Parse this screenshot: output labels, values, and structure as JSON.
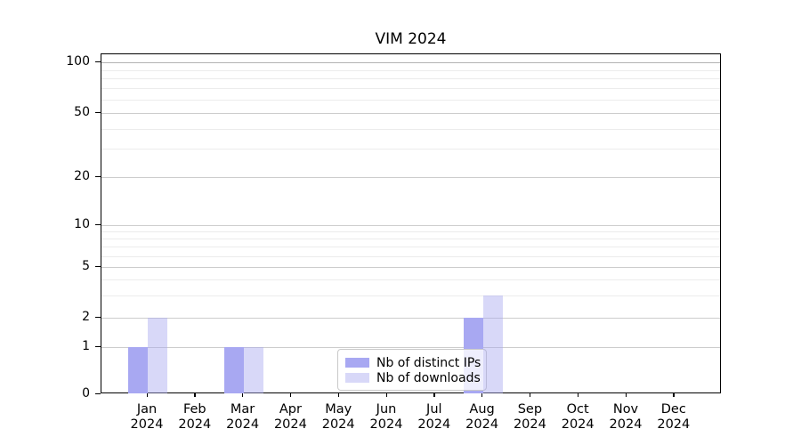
{
  "title": "VIM 2024",
  "chart_data": {
    "type": "bar",
    "title": "VIM 2024",
    "categories": [
      {
        "month": "Jan",
        "year": "2024"
      },
      {
        "month": "Feb",
        "year": "2024"
      },
      {
        "month": "Mar",
        "year": "2024"
      },
      {
        "month": "Apr",
        "year": "2024"
      },
      {
        "month": "May",
        "year": "2024"
      },
      {
        "month": "Jun",
        "year": "2024"
      },
      {
        "month": "Jul",
        "year": "2024"
      },
      {
        "month": "Aug",
        "year": "2024"
      },
      {
        "month": "Sep",
        "year": "2024"
      },
      {
        "month": "Oct",
        "year": "2024"
      },
      {
        "month": "Nov",
        "year": "2024"
      },
      {
        "month": "Dec",
        "year": "2024"
      }
    ],
    "series": [
      {
        "name": "Nb of distinct IPs",
        "values": [
          1,
          0,
          1,
          0,
          0,
          0,
          0,
          2,
          0,
          0,
          0,
          0
        ],
        "color": "#a8a8f2"
      },
      {
        "name": "Nb of downloads",
        "values": [
          2,
          0,
          1,
          0,
          0,
          0,
          0,
          3,
          0,
          0,
          0,
          0
        ],
        "color": "rgba(168,168,240,0.45)"
      }
    ],
    "yscale": "log-like",
    "ytick_values": [
      100,
      50,
      20,
      10,
      5,
      2,
      1,
      0
    ],
    "ytick_labels": [
      "100",
      "50",
      "20",
      "10",
      "5",
      "2",
      "1",
      "0"
    ],
    "minor_grid_values": [
      3,
      4,
      6,
      7,
      8,
      9,
      30,
      40,
      60,
      70,
      80,
      90
    ],
    "xlabel": "",
    "ylabel": "",
    "grid": true,
    "legend_position": "inside lower-center",
    "colors": {
      "major_grid": "#cdcdcd",
      "top_major_grid": "#b3b3b3",
      "minor_grid": "#ececec",
      "axis": "#000000"
    }
  }
}
